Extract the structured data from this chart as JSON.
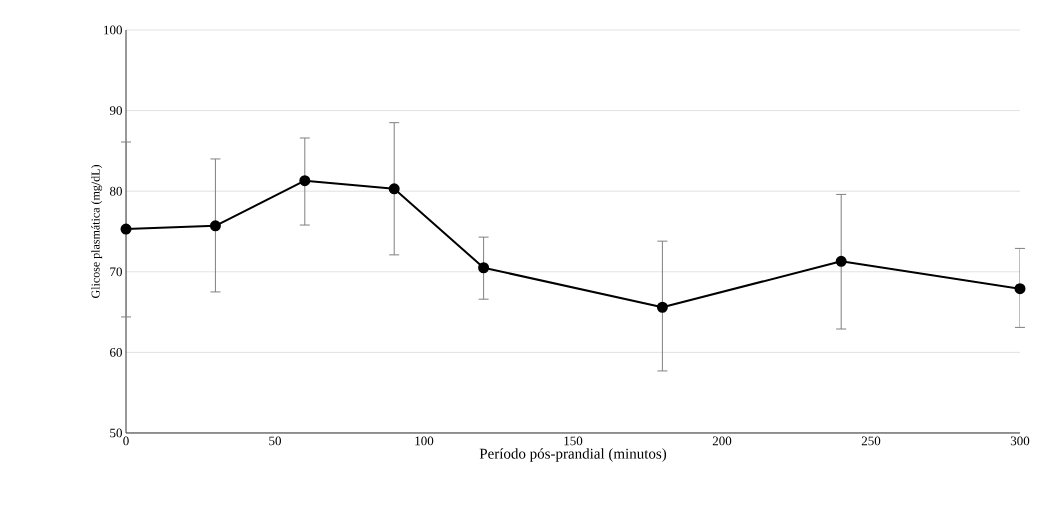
{
  "chart_data": {
    "type": "line",
    "xlabel": "Período pós-prandial (minutos)",
    "ylabel": "Glicose plasmática (mg/dL)",
    "x": [
      0,
      30,
      60,
      90,
      120,
      180,
      240,
      300
    ],
    "series": [
      {
        "color": "#000000",
        "values": [
          75.3,
          75.7,
          81.3,
          80.3,
          70.5,
          65.6,
          71.3,
          67.9
        ],
        "errors": [
          [
            64.4,
            86.1
          ],
          [
            67.5,
            84.0
          ],
          [
            75.8,
            86.6
          ],
          [
            72.1,
            88.5
          ],
          [
            66.6,
            74.3
          ],
          [
            57.7,
            73.8
          ],
          [
            62.9,
            79.6
          ],
          [
            63.1,
            72.9
          ]
        ]
      }
    ],
    "xlim": [
      0,
      300
    ],
    "ylim": [
      50,
      100
    ],
    "xticks": [
      0,
      50,
      100,
      150,
      200,
      250,
      300
    ],
    "yticks": [
      50,
      60,
      70,
      80,
      90,
      100
    ],
    "grid": "y",
    "marker": "circle",
    "line_style": "solid"
  }
}
